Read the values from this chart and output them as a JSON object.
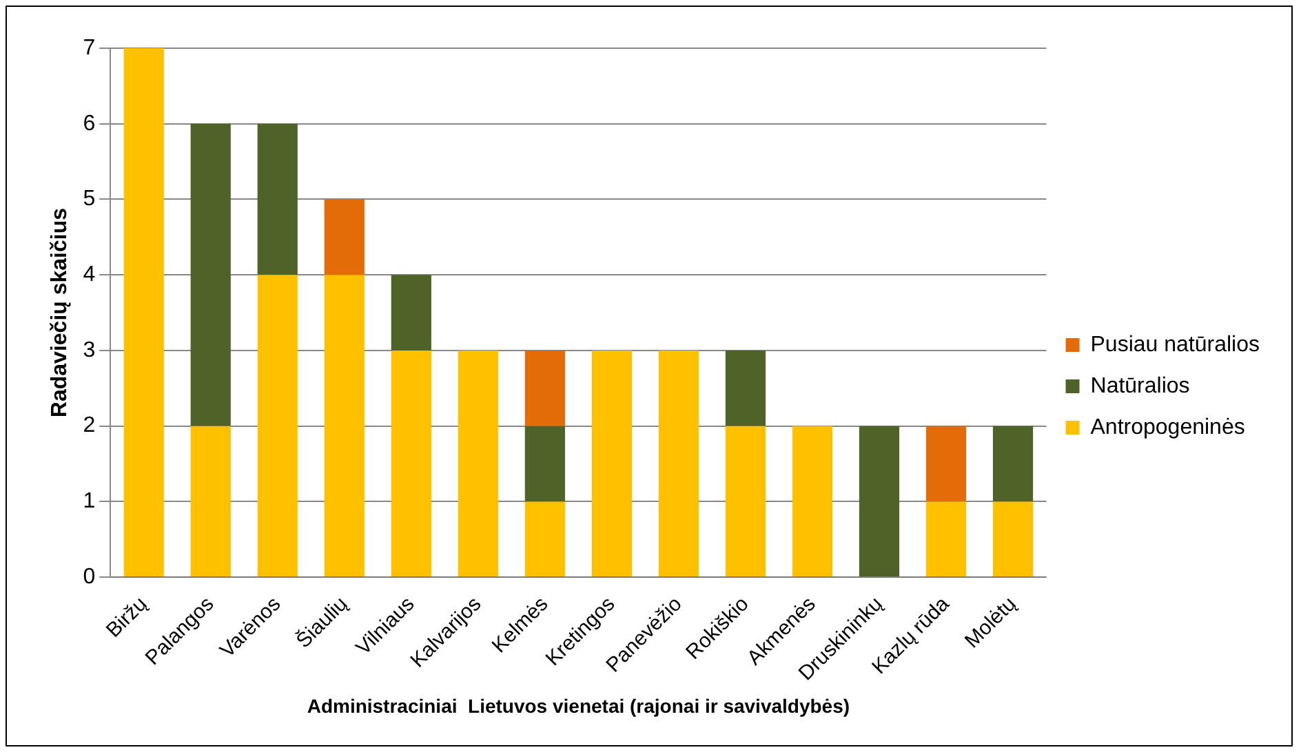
{
  "chart_data": {
    "type": "bar",
    "stacked": true,
    "xlabel": "Administraciniai  Lietuvos vienetai (rajonai ir savivaldybės)",
    "ylabel": "Radaviečių skaičius",
    "categories": [
      "Biržų",
      "Palangos",
      "Varėnos",
      "Šiaulių",
      "Vilniaus",
      "Kalvarijos",
      "Kelmės",
      "Kretingos",
      "Panevėžio",
      "Rokiškio",
      "Akmenės",
      "Druskininkų",
      "Kazlų rūda",
      "Molėtų"
    ],
    "series": [
      {
        "name": "Antropogeninės",
        "color": "#ffc000",
        "values": [
          7,
          2,
          4,
          4,
          3,
          3,
          1,
          3,
          3,
          2,
          2,
          0,
          1,
          1
        ]
      },
      {
        "name": "Natūralios",
        "color": "#4f6228",
        "values": [
          0,
          4,
          2,
          0,
          1,
          0,
          1,
          0,
          0,
          1,
          0,
          2,
          0,
          1
        ]
      },
      {
        "name": "Pusiau natūralios",
        "color": "#e36c09",
        "values": [
          0,
          0,
          0,
          1,
          0,
          0,
          1,
          0,
          0,
          0,
          0,
          0,
          1,
          0
        ]
      }
    ],
    "ylim": [
      0,
      7
    ],
    "yticks": [
      0,
      1,
      2,
      3,
      4,
      5,
      6,
      7
    ],
    "grid": "y",
    "legend": "right"
  }
}
